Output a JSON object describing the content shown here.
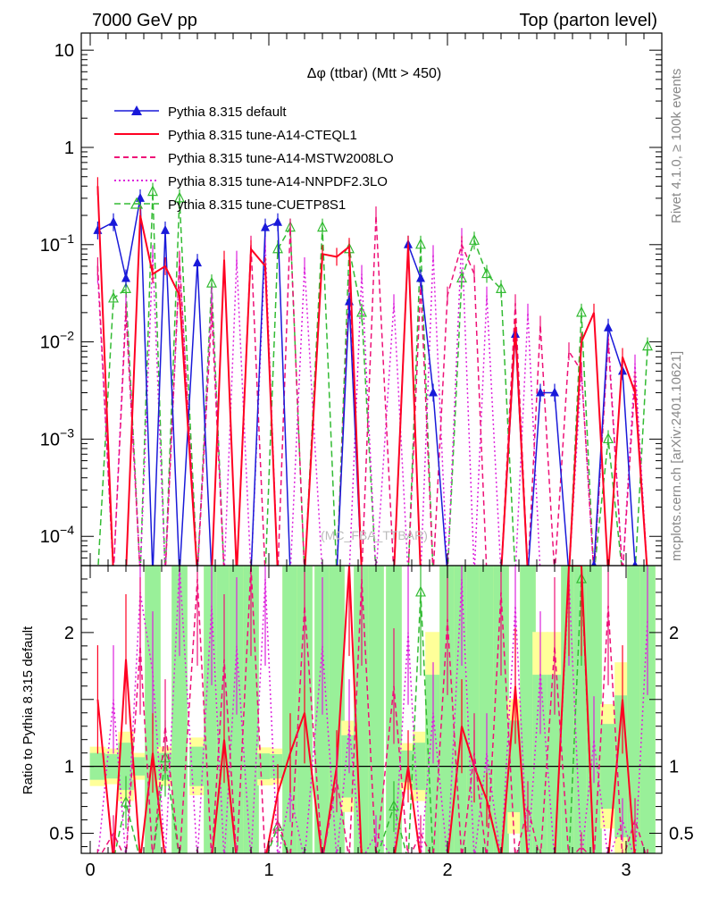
{
  "header": {
    "left": "7000 GeV pp",
    "right": "Top (parton level)"
  },
  "side_text": {
    "rivet": "Rivet 4.1.0, ≥ 100k events",
    "mcplots": "mcplots.cern.ch [arXiv:2401.10621]"
  },
  "colors": {
    "default": "#1919d9",
    "cteq": "#ff0022",
    "mstw": "#ee1177",
    "nnpdf": "#dd22dd",
    "cuetp": "#33bb33",
    "band_green": "#99f099",
    "band_yellow": "#ffff99"
  },
  "chart_data": [
    {
      "type": "line",
      "title": "Δφ (ttbar) (Mtt > 450)",
      "watermark": "(MC_FBA_TTBAR)",
      "xlabel": "",
      "ylabel": "",
      "yscale": "log",
      "xlim": [
        -0.05,
        3.2
      ],
      "ylim": [
        5e-05,
        15
      ],
      "yticks": [
        {
          "v": 0.0001,
          "b": "10",
          "e": "−4"
        },
        {
          "v": 0.001,
          "b": "10",
          "e": "−3"
        },
        {
          "v": 0.01,
          "b": "10",
          "e": "−2"
        },
        {
          "v": 0.1,
          "b": "10",
          "e": "−1"
        },
        {
          "v": 1,
          "b": "1",
          "e": ""
        },
        {
          "v": 10,
          "b": "10",
          "e": ""
        }
      ],
      "x": [
        0.042,
        0.13,
        0.2,
        0.28,
        0.35,
        0.42,
        0.5,
        0.6,
        0.68,
        0.75,
        0.82,
        0.9,
        0.98,
        1.05,
        1.12,
        1.2,
        1.3,
        1.38,
        1.45,
        1.52,
        1.6,
        1.7,
        1.78,
        1.85,
        1.92,
        2.0,
        2.08,
        2.15,
        2.22,
        2.3,
        2.38,
        2.45,
        2.52,
        2.6,
        2.68,
        2.75,
        2.82,
        2.9,
        2.98,
        3.05,
        3.12
      ],
      "series": [
        {
          "name": "Pythia 8.315 default",
          "color_key": "default",
          "dash": "solid",
          "marker": "triangle-filled",
          "values": [
            0.14,
            0.17,
            0.045,
            0.3,
            0.0,
            0.14,
            0.0,
            0.065,
            0.0,
            0.0,
            0.0,
            0.0,
            0.15,
            0.17,
            0.0,
            0.0,
            0.0,
            0.0,
            0.026,
            0.0,
            0.0,
            0.0,
            0.1,
            0.045,
            0.003,
            0.0,
            0.0,
            0.0,
            0.0,
            0.0,
            0.012,
            0.0,
            0.003,
            0.003,
            0.0,
            0.0,
            5e-05,
            0.014,
            0.005,
            5e-05,
            0.0
          ]
        },
        {
          "name": "Pythia 8.315 tune-A14-CTEQL1",
          "color_key": "cteq",
          "dash": "solid",
          "marker": "none",
          "values": [
            0.4,
            0.0,
            0.0,
            0.2,
            0.05,
            0.06,
            0.03,
            0.0,
            0.0,
            0.07,
            0.0,
            0.09,
            0.06,
            0.0,
            0.0,
            0.0,
            0.08,
            0.075,
            0.095,
            0.0,
            0.0,
            0.0,
            0.1,
            0.0,
            0.0,
            0.0,
            0.0,
            0.0,
            0.0,
            0.0,
            0.014,
            0.0,
            0.0,
            0.0,
            0.0,
            0.01,
            0.02,
            0.0,
            0.007,
            0.003,
            0.0
          ]
        },
        {
          "name": "Pythia 8.315 tune-A14-MSTW2008LO",
          "color_key": "mstw",
          "dash": "6,4",
          "marker": "none",
          "values": [
            0.06,
            0.0,
            0.02,
            0.0,
            0.0,
            0.0,
            0.07,
            0.0,
            0.02,
            0.0,
            0.0,
            0.1,
            0.0,
            0.0,
            0.15,
            0.0,
            0.0,
            0.0,
            0.04,
            0.0,
            0.2,
            0.0,
            0.0,
            0.04,
            0.0,
            0.03,
            0.1,
            0.05,
            0.0,
            0.0,
            0.025,
            0.0,
            0.015,
            0.0,
            0.008,
            0.005,
            0.0,
            0.01,
            0.0,
            0.004,
            0.0
          ]
        },
        {
          "name": "Pythia 8.315 tune-A14-NNPDF2.3LO",
          "color_key": "nnpdf",
          "dash": "2,3",
          "marker": "none",
          "values": [
            0.05,
            0.0,
            0.025,
            0.0,
            0.08,
            0.0,
            0.06,
            0.0,
            0.03,
            0.0,
            0.07,
            0.0,
            0.1,
            0.0,
            0.0,
            0.06,
            0.0,
            0.0,
            0.0,
            0.05,
            0.0,
            0.025,
            0.0,
            0.0,
            0.08,
            0.0,
            0.12,
            0.0,
            0.03,
            0.0,
            0.0,
            0.02,
            0.0,
            0.0,
            0.0,
            0.005,
            0.0,
            0.012,
            0.0,
            0.006,
            0.0
          ]
        },
        {
          "name": "Pythia 8.315 tune-CUETP8S1",
          "color_key": "cuetp",
          "dash": "7,4",
          "marker": "triangle-open",
          "values": [
            0.0,
            0.028,
            0.035,
            0.0,
            0.35,
            0.0,
            0.3,
            0.0,
            0.04,
            0.0,
            0.0,
            0.0,
            0.0,
            0.09,
            0.15,
            0.0,
            0.15,
            0.0,
            0.09,
            0.02,
            0.0,
            0.0,
            0.0,
            0.1,
            0.0,
            0.0,
            0.045,
            0.11,
            0.05,
            0.035,
            0.0,
            0.0,
            0.0,
            0.0,
            0.0,
            0.02,
            0.0,
            0.001,
            0.0,
            0.0,
            0.009
          ]
        }
      ],
      "legend_position": "top-left"
    },
    {
      "type": "line",
      "title": "",
      "ylabel": "Ratio to Pythia 8.315 default",
      "xlabel": "",
      "xlim": [
        -0.05,
        3.2
      ],
      "ylim": [
        0.35,
        2.5
      ],
      "xticks": [
        0,
        1,
        2,
        3
      ],
      "yticks": [
        0.5,
        1,
        2
      ],
      "x": [
        0.042,
        0.13,
        0.2,
        0.28,
        0.35,
        0.42,
        0.5,
        0.6,
        0.68,
        0.75,
        0.82,
        0.9,
        0.98,
        1.05,
        1.12,
        1.2,
        1.3,
        1.38,
        1.45,
        1.52,
        1.6,
        1.7,
        1.78,
        1.85,
        1.92,
        2.0,
        2.08,
        2.15,
        2.22,
        2.3,
        2.38,
        2.45,
        2.52,
        2.6,
        2.68,
        2.75,
        2.82,
        2.9,
        2.98,
        3.05,
        3.12
      ],
      "series": [
        {
          "name": "Pythia 8.315 tune-A14-CTEQL1",
          "color_key": "cteq",
          "dash": "solid",
          "marker": "none",
          "values": [
            1.5,
            0.3,
            1.8,
            0.3,
            1.1,
            0.3,
            0.3,
            0.3,
            0.3,
            1.2,
            0.3,
            0.3,
            0.3,
            0.8,
            1.1,
            1.4,
            0.3,
            1.0,
            2.5,
            0.3,
            0.3,
            0.3,
            1.0,
            0.3,
            0.3,
            0.3,
            1.3,
            1.0,
            0.75,
            0.3,
            1.6,
            0.3,
            0.3,
            0.3,
            2.5,
            2.5,
            0.3,
            0.3,
            1.5,
            0.3,
            0.3
          ]
        },
        {
          "name": "Pythia 8.315 tune-A14-MSTW2008LO",
          "color_key": "mstw",
          "dash": "6,4",
          "marker": "none",
          "values": [
            0.3,
            0.5,
            0.3,
            1.9,
            0.3,
            1.3,
            0.3,
            2.4,
            0.3,
            1.8,
            0.3,
            2.5,
            0.3,
            0.6,
            0.3,
            2.2,
            0.3,
            0.9,
            0.3,
            2.4,
            0.3,
            1.6,
            0.3,
            0.5,
            0.3,
            2.1,
            0.3,
            1.1,
            0.3,
            2.3,
            0.3,
            0.7,
            0.3,
            1.9,
            0.3,
            0.4,
            0.3,
            2.2,
            0.3,
            0.6,
            0.3
          ]
        },
        {
          "name": "Pythia 8.315 tune-A14-NNPDF2.3LO",
          "color_key": "nnpdf",
          "dash": "2,3",
          "marker": "none",
          "values": [
            0.3,
            1.5,
            0.3,
            2.3,
            1.7,
            0.3,
            2.5,
            0.3,
            2.2,
            0.3,
            1.9,
            0.3,
            2.4,
            0.3,
            0.8,
            0.3,
            1.9,
            0.3,
            1.3,
            0.3,
            0.5,
            0.3,
            2.0,
            0.3,
            1.4,
            0.3,
            2.4,
            0.3,
            1.1,
            0.3,
            2.2,
            0.3,
            1.7,
            0.3,
            2.4,
            0.3,
            1.2,
            0.3,
            0.6,
            0.3,
            2.1
          ]
        },
        {
          "name": "Pythia 8.315 tune-CUETP8S1",
          "color_key": "cuetp",
          "dash": "7,4",
          "marker": "triangle-open",
          "values": [
            0.3,
            0.3,
            0.73,
            0.3,
            0.3,
            1.06,
            0.3,
            0.3,
            0.3,
            0.3,
            0.3,
            0.3,
            0.3,
            0.55,
            0.3,
            0.3,
            0.3,
            0.3,
            0.3,
            0.3,
            0.3,
            0.7,
            0.3,
            2.3,
            0.3,
            0.3,
            0.3,
            0.3,
            0.3,
            0.3,
            0.3,
            0.3,
            0.3,
            0.3,
            0.3,
            2.4,
            0.3,
            0.3,
            0.3,
            0.3,
            0.3
          ]
        }
      ],
      "reference_line": 1
    }
  ]
}
